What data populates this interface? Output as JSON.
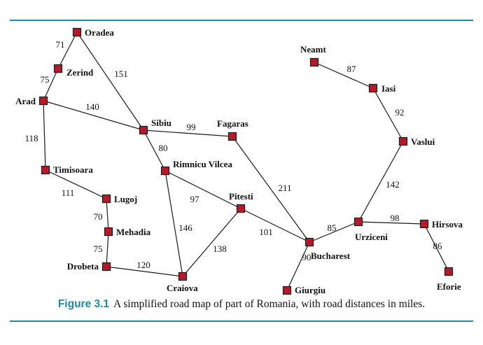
{
  "figure": {
    "number": "Figure 3.1",
    "caption": "A simplified road map of part of Romania, with road distances in miles.",
    "accent_color": "#1f8aa8",
    "city_color": "#b31b2b"
  },
  "cities": [
    {
      "id": "oradea",
      "name": "Oradea"
    },
    {
      "id": "zerind",
      "name": "Zerind"
    },
    {
      "id": "arad",
      "name": "Arad"
    },
    {
      "id": "sibiu",
      "name": "Sibiu"
    },
    {
      "id": "fagaras",
      "name": "Fagaras"
    },
    {
      "id": "timisoara",
      "name": "Timisoara"
    },
    {
      "id": "rimnicu",
      "name": "Rimnicu Vilcea"
    },
    {
      "id": "lugoj",
      "name": "Lugoj"
    },
    {
      "id": "pitesti",
      "name": "Pitesti"
    },
    {
      "id": "mehadia",
      "name": "Mehadia"
    },
    {
      "id": "drobeta",
      "name": "Drobeta"
    },
    {
      "id": "craiova",
      "name": "Craiova"
    },
    {
      "id": "bucharest",
      "name": "Bucharest"
    },
    {
      "id": "giurgiu",
      "name": "Giurgiu"
    },
    {
      "id": "urziceni",
      "name": "Urziceni"
    },
    {
      "id": "hirsova",
      "name": "Hirsova"
    },
    {
      "id": "eforie",
      "name": "Eforie"
    },
    {
      "id": "vaslui",
      "name": "Vaslui"
    },
    {
      "id": "iasi",
      "name": "Iasi"
    },
    {
      "id": "neamt",
      "name": "Neamt"
    }
  ],
  "roads": [
    {
      "from": "oradea",
      "to": "zerind",
      "distance": "71"
    },
    {
      "from": "zerind",
      "to": "arad",
      "distance": "75"
    },
    {
      "from": "oradea",
      "to": "sibiu",
      "distance": "151"
    },
    {
      "from": "arad",
      "to": "sibiu",
      "distance": "140"
    },
    {
      "from": "arad",
      "to": "timisoara",
      "distance": "118"
    },
    {
      "from": "sibiu",
      "to": "fagaras",
      "distance": "99"
    },
    {
      "from": "sibiu",
      "to": "rimnicu",
      "distance": "80"
    },
    {
      "from": "timisoara",
      "to": "lugoj",
      "distance": "111"
    },
    {
      "from": "lugoj",
      "to": "mehadia",
      "distance": "70"
    },
    {
      "from": "mehadia",
      "to": "drobeta",
      "distance": "75"
    },
    {
      "from": "drobeta",
      "to": "craiova",
      "distance": "120"
    },
    {
      "from": "rimnicu",
      "to": "craiova",
      "distance": "146"
    },
    {
      "from": "rimnicu",
      "to": "pitesti",
      "distance": "97"
    },
    {
      "from": "craiova",
      "to": "pitesti",
      "distance": "138"
    },
    {
      "from": "pitesti",
      "to": "bucharest",
      "distance": "101"
    },
    {
      "from": "fagaras",
      "to": "bucharest",
      "distance": "211"
    },
    {
      "from": "bucharest",
      "to": "giurgiu",
      "distance": "90"
    },
    {
      "from": "bucharest",
      "to": "urziceni",
      "distance": "85"
    },
    {
      "from": "urziceni",
      "to": "hirsova",
      "distance": "98"
    },
    {
      "from": "hirsova",
      "to": "eforie",
      "distance": "86"
    },
    {
      "from": "urziceni",
      "to": "vaslui",
      "distance": "142"
    },
    {
      "from": "vaslui",
      "to": "iasi",
      "distance": "92"
    },
    {
      "from": "iasi",
      "to": "neamt",
      "distance": "87"
    }
  ]
}
